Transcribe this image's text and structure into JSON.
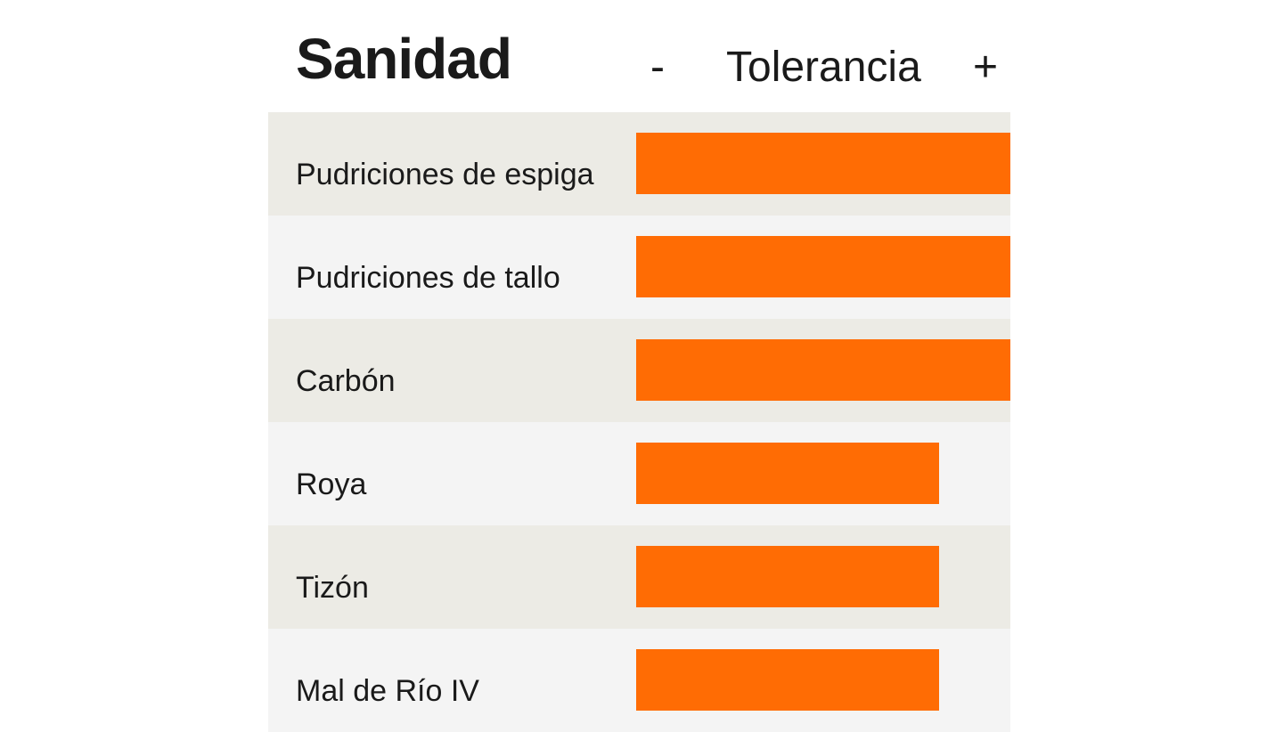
{
  "header": {
    "title": "Sanidad",
    "scale_min": "-",
    "scale_title": "Tolerancia",
    "scale_max": "+"
  },
  "colors": {
    "bar": "#ff6c04",
    "row_odd": "#ecebe5",
    "row_even": "#f4f4f4"
  },
  "chart_data": {
    "type": "bar",
    "orientation": "horizontal",
    "title": "Sanidad",
    "xlabel": "Tolerancia",
    "xlim": [
      0,
      1
    ],
    "categories": [
      "Pudriciones de espiga",
      "Pudriciones de tallo",
      "Carbón",
      "Roya",
      "Tizón",
      "Mal de Río IV"
    ],
    "values": [
      1.0,
      1.0,
      1.0,
      0.81,
      0.81,
      0.81
    ],
    "grid": false
  }
}
